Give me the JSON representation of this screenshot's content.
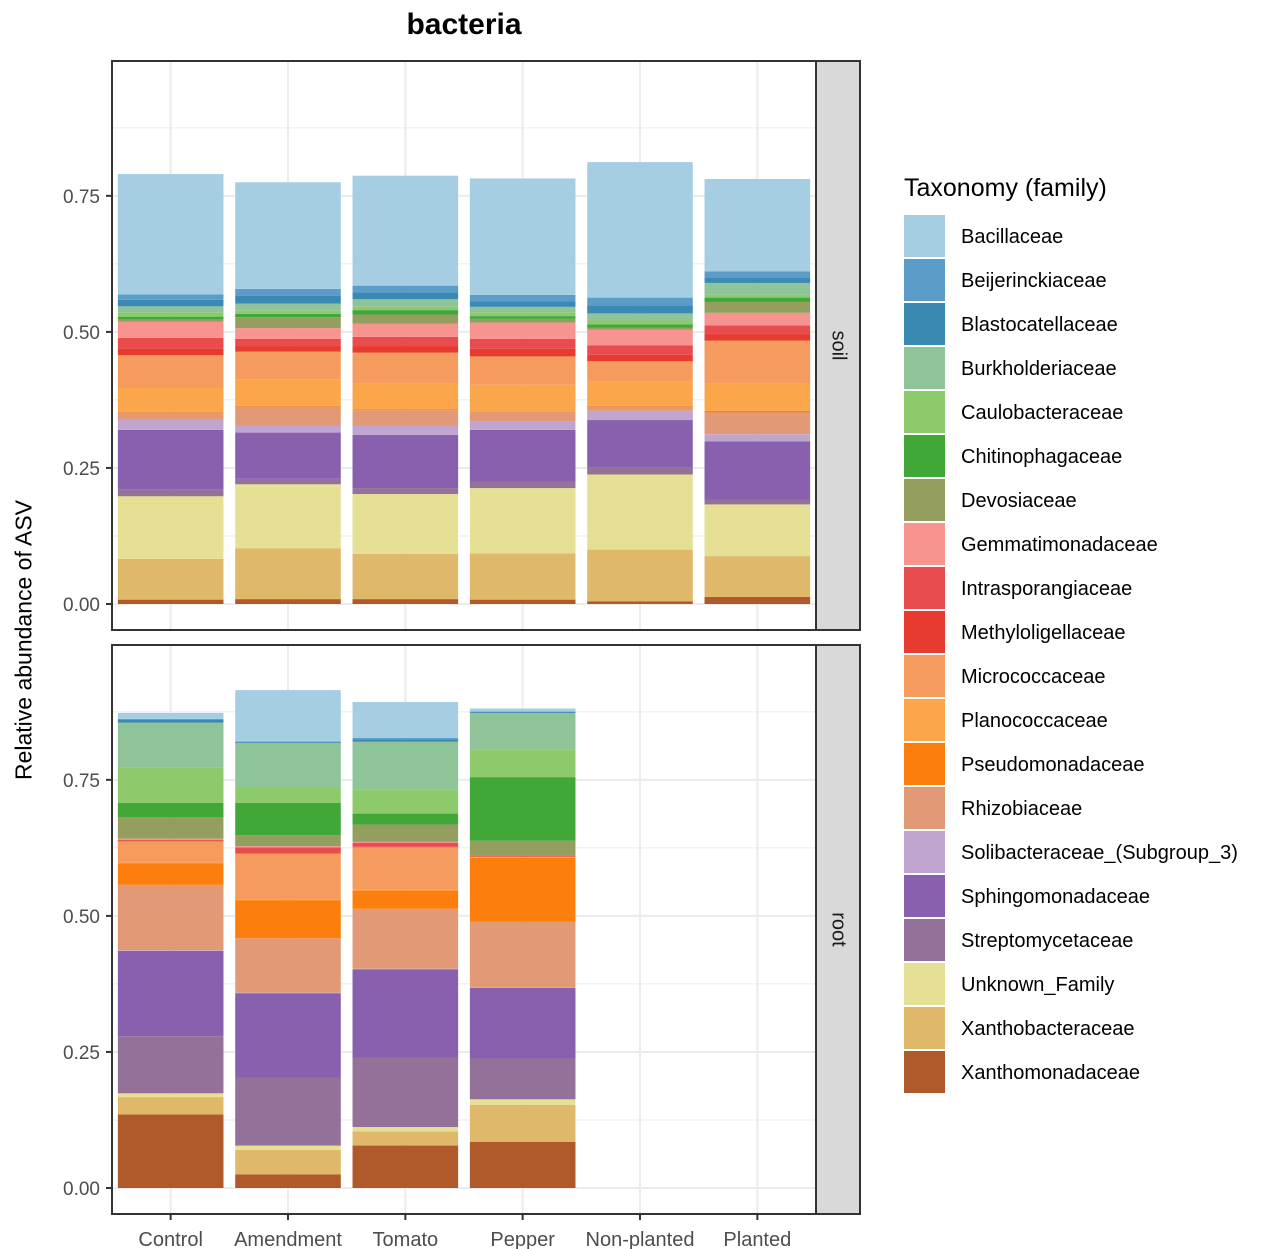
{
  "chart_data": {
    "type": "bar",
    "stacked": true,
    "title": "bacteria",
    "ylabel": "Relative abundance of ASV",
    "xlabel": "",
    "ylim": [
      0,
      0.95
    ],
    "yticks": [
      "0.00",
      "0.25",
      "0.50",
      "0.75"
    ],
    "grid": true,
    "legend_position": "right",
    "legend_title": "Taxonomy (family)",
    "categories": [
      "Control",
      "Amendment",
      "Tomato",
      "Pepper",
      "Non-planted",
      "Planted"
    ],
    "facets": [
      "soil",
      "root"
    ],
    "series": [
      {
        "name": "Bacillaceae",
        "color": "#A6CEE3",
        "values": {
          "soil": [
            0.221,
            0.196,
            0.202,
            0.214,
            0.249,
            0.17
          ],
          "root": [
            0.011,
            0.094,
            0.066,
            0.005,
            null,
            null
          ]
        }
      },
      {
        "name": "Beijerinckiaceae",
        "color": "#5B9CC9",
        "values": {
          "soil": [
            0.01,
            0.013,
            0.012,
            0.012,
            0.014,
            0.012
          ],
          "root": [
            0.002,
            0.001,
            0.003,
            0.001,
            null,
            null
          ]
        }
      },
      {
        "name": "Blastocatellaceae",
        "color": "#3A89B2",
        "values": {
          "soil": [
            0.012,
            0.014,
            0.013,
            0.01,
            0.015,
            0.009
          ],
          "root": [
            0.005,
            0.002,
            0.004,
            0.002,
            null,
            null
          ]
        }
      },
      {
        "name": "Burkholderiaceae",
        "color": "#8FC498",
        "values": {
          "soil": [
            0.011,
            0.013,
            0.014,
            0.01,
            0.013,
            0.022
          ],
          "root": [
            0.082,
            0.083,
            0.088,
            0.067,
            null,
            null
          ]
        }
      },
      {
        "name": "Caulobacteraceae",
        "color": "#8DCA6B",
        "values": {
          "soil": [
            0.008,
            0.006,
            0.006,
            0.007,
            0.007,
            0.005
          ],
          "root": [
            0.065,
            0.027,
            0.044,
            0.051,
            null,
            null
          ]
        }
      },
      {
        "name": "Chitinophagaceae",
        "color": "#41A737",
        "values": {
          "soil": [
            0.005,
            0.006,
            0.008,
            0.005,
            0.006,
            0.008
          ],
          "root": [
            0.027,
            0.06,
            0.02,
            0.117,
            null,
            null
          ]
        }
      },
      {
        "name": "Devosiaceae",
        "color": "#949E5E",
        "values": {
          "soil": [
            0.004,
            0.02,
            0.017,
            0.007,
            0.004,
            0.02
          ],
          "root": [
            0.039,
            0.02,
            0.032,
            0.026,
            null,
            null
          ]
        }
      },
      {
        "name": "Gemmatimonadaceae",
        "color": "#F89490",
        "values": {
          "soil": [
            0.03,
            0.02,
            0.024,
            0.03,
            0.029,
            0.023
          ],
          "root": [
            0.002,
            0.002,
            0.002,
            0.001,
            null,
            null
          ]
        }
      },
      {
        "name": "Intrasporangiaceae",
        "color": "#E84C4E",
        "values": {
          "soil": [
            0.019,
            0.013,
            0.017,
            0.018,
            0.017,
            0.016
          ],
          "root": [
            0.001,
            0.011,
            0.007,
            0.001,
            null,
            null
          ]
        }
      },
      {
        "name": "Methyloligellaceae",
        "color": "#E63B2E",
        "values": {
          "soil": [
            0.013,
            0.01,
            0.012,
            0.014,
            0.012,
            0.012
          ],
          "root": [
            0.002,
            0.001,
            0.001,
            0.001,
            null,
            null
          ]
        }
      },
      {
        "name": "Micrococcaceae",
        "color": "#F69B5E",
        "values": {
          "soil": [
            0.06,
            0.051,
            0.056,
            0.052,
            0.037,
            0.078
          ],
          "root": [
            0.039,
            0.084,
            0.078,
            0.001,
            null,
            null
          ]
        }
      },
      {
        "name": "Planococcaceae",
        "color": "#FCA64C",
        "values": {
          "soil": [
            0.044,
            0.049,
            0.048,
            0.049,
            0.045,
            0.051
          ],
          "root": [
            0.001,
            0.001,
            0.001,
            0.001,
            null,
            null
          ]
        }
      },
      {
        "name": "Pseudomonadaceae",
        "color": "#FC7F0D",
        "values": {
          "soil": [
            0.001,
            0.001,
            0.002,
            0.001,
            0.001,
            0.003
          ],
          "root": [
            0.04,
            0.07,
            0.034,
            0.118,
            null,
            null
          ]
        }
      },
      {
        "name": "Rhizobiaceae",
        "color": "#E29A76",
        "values": {
          "soil": [
            0.012,
            0.035,
            0.028,
            0.018,
            0.008,
            0.04
          ],
          "root": [
            0.12,
            0.1,
            0.11,
            0.12,
            null,
            null
          ]
        }
      },
      {
        "name": "Solibacteraceae_(Subgroup_3)",
        "color": "#C1A5D1",
        "values": {
          "soil": [
            0.02,
            0.013,
            0.017,
            0.015,
            0.017,
            0.013
          ],
          "root": [
            0.001,
            0.001,
            0.001,
            0.001,
            null,
            null
          ]
        }
      },
      {
        "name": "Sphingomonadaceae",
        "color": "#8860AE",
        "values": {
          "soil": [
            0.11,
            0.085,
            0.098,
            0.095,
            0.087,
            0.107
          ],
          "root": [
            0.157,
            0.155,
            0.163,
            0.13,
            null,
            null
          ]
        }
      },
      {
        "name": "Streptomycetaceae",
        "color": "#937198",
        "values": {
          "soil": [
            0.012,
            0.01,
            0.011,
            0.012,
            0.013,
            0.009
          ],
          "root": [
            0.105,
            0.125,
            0.127,
            0.075,
            null,
            null
          ]
        }
      },
      {
        "name": "Unknown_Family",
        "color": "#E6E095",
        "values": {
          "soil": [
            0.115,
            0.118,
            0.11,
            0.12,
            0.138,
            0.095
          ],
          "root": [
            0.007,
            0.008,
            0.008,
            0.01,
            null,
            null
          ]
        }
      },
      {
        "name": "Xanthobacteraceae",
        "color": "#DFB969",
        "values": {
          "soil": [
            0.075,
            0.093,
            0.083,
            0.085,
            0.095,
            0.075
          ],
          "root": [
            0.032,
            0.045,
            0.026,
            0.068,
            null,
            null
          ]
        }
      },
      {
        "name": "Xanthomonadaceae",
        "color": "#B0592A",
        "values": {
          "soil": [
            0.008,
            0.009,
            0.009,
            0.008,
            0.005,
            0.013
          ],
          "root": [
            0.135,
            0.025,
            0.078,
            0.085,
            null,
            null
          ]
        }
      }
    ]
  }
}
